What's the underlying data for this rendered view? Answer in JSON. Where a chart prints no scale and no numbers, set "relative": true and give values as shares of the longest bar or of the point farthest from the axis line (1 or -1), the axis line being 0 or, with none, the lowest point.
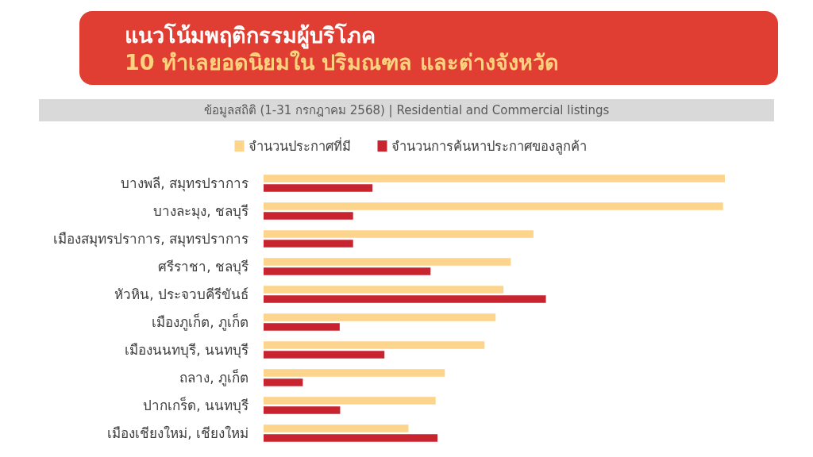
{
  "chart_data": {
    "type": "bar",
    "orientation": "horizontal",
    "relative": true,
    "title": "แนวโน้มพฤติกรรมผู้บริโภค",
    "subtitle": "10 ทำเลยอดนิยมใน ปริมณฑล และต่างจังหวัด",
    "annotations": [
      "ข้อมูลสถิติ (1-31 กรกฎาคม 2568) | Residential and Commercial listings"
    ],
    "categories": [
      "บางพลี, สมุทรปราการ",
      "บางละมุง, ชลบุรี",
      "เมืองสมุทรปราการ, สมุทรปราการ",
      "ศรีราชา, ชลบุรี",
      "หัวหิน, ประจวบคีรีขันธ์",
      "เมืองภูเก็ต, ภูเก็ต",
      "เมืองนนทบุรี, นนทบุรี",
      "ถลาง, ภูเก็ต",
      "ปากเกร็ด, นนทบุรี",
      "เมืองเชียงใหม่, เชียงใหม่"
    ],
    "series": [
      {
        "name": "จำนวนประกาศที่มี",
        "color": "#fdd48c",
        "values": [
          1,
          0.996,
          0.585,
          0.536,
          0.52,
          0.503,
          0.479,
          0.393,
          0.373,
          0.314
        ]
      },
      {
        "name": "จำนวนการค้นหาประกาศของลูกค้า",
        "color": "#c8242f",
        "values": [
          0.236,
          0.194,
          0.194,
          0.362,
          0.612,
          0.165,
          0.262,
          0.085,
          0.166,
          0.377
        ]
      }
    ],
    "legend": "top"
  }
}
